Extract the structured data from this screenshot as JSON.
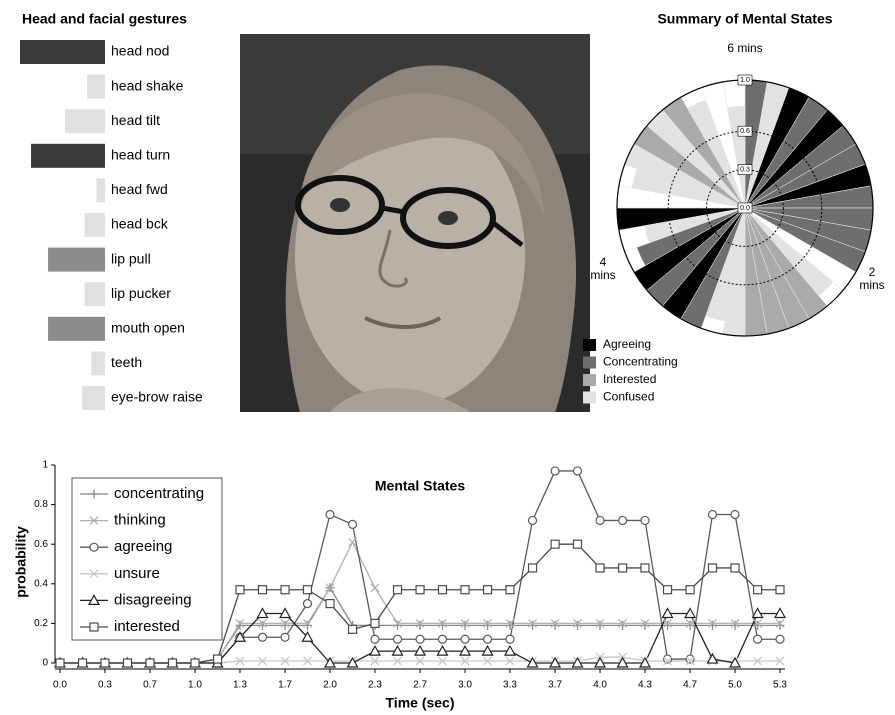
{
  "chart_data": [
    {
      "type": "hbar",
      "title": "Head and facial gestures",
      "categories": [
        "head nod",
        "head shake",
        "head tilt",
        "head turn",
        "head fwd",
        "head bck",
        "lip pull",
        "lip pucker",
        "mouth open",
        "teeth",
        "eye-brow raise"
      ],
      "values": [
        1.0,
        0.21,
        0.47,
        0.87,
        0.1,
        0.24,
        0.67,
        0.24,
        0.67,
        0.16,
        0.27
      ],
      "colors": [
        "#3a3a3a",
        "#e0e0e0",
        "#e0e0e0",
        "#3a3a3a",
        "#e0e0e0",
        "#e0e0e0",
        "#8c8c8c",
        "#e0e0e0",
        "#8c8c8c",
        "#e0e0e0",
        "#e0e0e0"
      ],
      "xlim": [
        0,
        1
      ]
    },
    {
      "type": "polar_bar",
      "title": "Summary of Mental States",
      "rlim": [
        0,
        1
      ],
      "rticks": [
        {
          "value": 0,
          "label": "0.0"
        },
        0.3,
        0.6,
        {
          "value": 1,
          "label": "1.0"
        }
      ],
      "annotations": [
        "6 mins",
        "2 mins",
        "4 mins"
      ],
      "series": [
        {
          "name": "Agreeing",
          "color": "#000000",
          "values": [
            null,
            null,
            1,
            null,
            1,
            null,
            null,
            1,
            null,
            null,
            null,
            null,
            null,
            null,
            null,
            null,
            null,
            null,
            null,
            null,
            null,
            1,
            null,
            1,
            null,
            null,
            1,
            null,
            null,
            null,
            null,
            null,
            null,
            null,
            null,
            null
          ]
        },
        {
          "name": "Concentrating",
          "color": "#6e6e6e",
          "values": [
            1,
            null,
            null,
            1,
            null,
            1,
            1,
            null,
            1,
            1,
            1,
            1,
            null,
            null,
            null,
            null,
            null,
            null,
            null,
            null,
            1,
            null,
            1,
            null,
            0.9,
            null,
            null,
            null,
            null,
            null,
            null,
            null,
            null,
            null,
            null,
            null
          ]
        },
        {
          "name": "Interested",
          "color": "#aaaaaa",
          "values": [
            null,
            null,
            null,
            null,
            null,
            null,
            null,
            null,
            null,
            null,
            null,
            null,
            null,
            null,
            1,
            1,
            1,
            1,
            null,
            null,
            null,
            null,
            null,
            null,
            null,
            null,
            null,
            null,
            null,
            null,
            1,
            null,
            1,
            null,
            null,
            null
          ]
        },
        {
          "name": "Confused",
          "color": "#e2e2e2",
          "values": [
            null,
            1,
            null,
            null,
            null,
            null,
            null,
            null,
            null,
            null,
            null,
            null,
            null,
            0.9,
            null,
            null,
            null,
            null,
            1,
            0.9,
            null,
            null,
            null,
            null,
            null,
            0.8,
            null,
            null,
            0.9,
            1,
            null,
            1,
            null,
            0.9,
            null,
            0.8
          ]
        }
      ]
    },
    {
      "type": "line",
      "title": "Mental States",
      "x_label": "Time (sec)",
      "y_label": "probability",
      "x": [
        0,
        0.167,
        0.333,
        0.5,
        0.667,
        0.833,
        1,
        1.167,
        1.333,
        1.5,
        1.667,
        1.833,
        2,
        2.167,
        2.333,
        2.5,
        2.667,
        2.833,
        3,
        3.167,
        3.333,
        3.5,
        3.667,
        3.833,
        4,
        4.167,
        4.333,
        4.5,
        4.667,
        4.833,
        5,
        5.167,
        5.333
      ],
      "xlim": [
        0,
        5.333
      ],
      "xticks": [
        {
          "value": 0,
          "label": "0.0"
        },
        {
          "value": 0.333,
          "label": "0.3"
        },
        {
          "value": 0.667,
          "label": "0.7"
        },
        {
          "value": 1,
          "label": "1.0"
        },
        {
          "value": 1.333,
          "label": "1.3"
        },
        {
          "value": 1.667,
          "label": "1.7"
        },
        {
          "value": 2,
          "label": "2.0"
        },
        {
          "value": 2.333,
          "label": "2.3"
        },
        {
          "value": 2.667,
          "label": "2.7"
        },
        {
          "value": 3,
          "label": "3.0"
        },
        {
          "value": 3.333,
          "label": "3.3"
        },
        {
          "value": 3.667,
          "label": "3.7"
        },
        {
          "value": 4,
          "label": "4.0"
        },
        {
          "value": 4.333,
          "label": "4.3"
        },
        {
          "value": 4.667,
          "label": "4.7"
        },
        {
          "value": 5,
          "label": "5.0"
        },
        {
          "value": 5.333,
          "label": "5.3"
        }
      ],
      "ylim": [
        0,
        1
      ],
      "yticks": [
        0,
        0.2,
        0.4,
        0.6,
        0.8,
        1
      ],
      "series": [
        {
          "name": "concentrating",
          "color": "#888888",
          "marker": "plus",
          "values": [
            0,
            0,
            0,
            0,
            0,
            0,
            0,
            0.02,
            0.19,
            0.19,
            0.19,
            0.19,
            0.38,
            0.19,
            0.19,
            0.19,
            0.19,
            0.19,
            0.19,
            0.19,
            0.19,
            0.19,
            0.19,
            0.19,
            0.19,
            0.19,
            0.19,
            0.19,
            0.19,
            0.19,
            0.19,
            0.19,
            0.19
          ]
        },
        {
          "name": "thinking",
          "color": "#b0b0b0",
          "marker": "x",
          "values": [
            0,
            0,
            0,
            0,
            0,
            0,
            0,
            0.02,
            0.2,
            0.2,
            0.2,
            0.2,
            0.38,
            0.61,
            0.38,
            0.2,
            0.2,
            0.2,
            0.2,
            0.2,
            0.2,
            0.2,
            0.2,
            0.2,
            0.2,
            0.2,
            0.2,
            0.2,
            0.2,
            0.2,
            0.2,
            0.2,
            0.2
          ]
        },
        {
          "name": "agreeing",
          "color": "#5a5a5a",
          "marker": "circle",
          "values": [
            0,
            0,
            0,
            0,
            0,
            0,
            0,
            0,
            0.13,
            0.13,
            0.13,
            0.3,
            0.75,
            0.7,
            0.12,
            0.12,
            0.12,
            0.12,
            0.12,
            0.12,
            0.12,
            0.72,
            0.97,
            0.97,
            0.72,
            0.72,
            0.72,
            0.02,
            0.02,
            0.75,
            0.75,
            0.12,
            0.12
          ]
        },
        {
          "name": "unsure",
          "color": "#c8c8c8",
          "marker": "x",
          "values": [
            0,
            0,
            0,
            0,
            0,
            0,
            0,
            0,
            0.01,
            0.01,
            0.01,
            0.01,
            0.01,
            0.01,
            0.01,
            0.01,
            0.01,
            0.01,
            0.01,
            0.01,
            0.01,
            0.01,
            0.01,
            0.01,
            0.03,
            0.03,
            0.01,
            0.01,
            0.01,
            0.01,
            0.01,
            0.01,
            0.01
          ]
        },
        {
          "name": "disagreeing",
          "color": "#222222",
          "marker": "triangle",
          "values": [
            0,
            0,
            0,
            0,
            0,
            0,
            0,
            0,
            0.13,
            0.25,
            0.25,
            0.13,
            0,
            0,
            0.06,
            0.06,
            0.06,
            0.06,
            0.06,
            0.06,
            0.06,
            0,
            0,
            0,
            0,
            0,
            0,
            0.25,
            0.25,
            0.02,
            0,
            0.25,
            0.25
          ]
        },
        {
          "name": "interested",
          "color": "#4a4a4a",
          "marker": "square",
          "values": [
            0,
            0,
            0,
            0,
            0,
            0,
            0,
            0.02,
            0.37,
            0.37,
            0.37,
            0.37,
            0.3,
            0.17,
            0.2,
            0.37,
            0.37,
            0.37,
            0.37,
            0.37,
            0.37,
            0.48,
            0.6,
            0.6,
            0.48,
            0.48,
            0.48,
            0.37,
            0.37,
            0.48,
            0.48,
            0.37,
            0.37
          ]
        }
      ]
    }
  ]
}
